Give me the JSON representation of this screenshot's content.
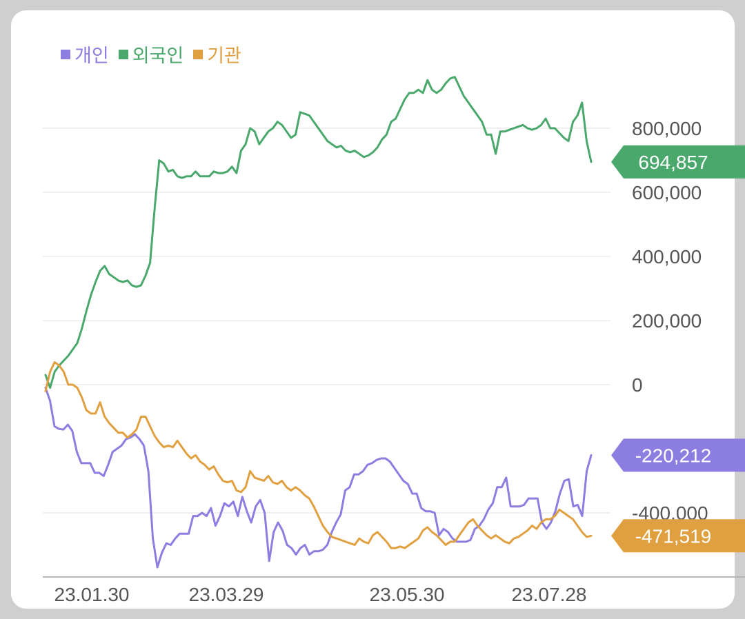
{
  "chart_data": {
    "type": "line",
    "x_ticks": [
      "23.01.30",
      "23.03.29",
      "23.05.30",
      "23.07.28"
    ],
    "y_ticks": [
      800000,
      600000,
      400000,
      200000,
      0,
      -400000
    ],
    "y_tick_labels": [
      "800,000",
      "600,000",
      "400,000",
      "200,000",
      "0",
      "-400,000"
    ],
    "ylim": [
      -600000,
      1000000
    ],
    "grid": true,
    "legend_position": "top-left",
    "series": [
      {
        "name": "개인",
        "color": "#8c7ee0",
        "last_label": "-220,212",
        "values": [
          -10000,
          -50000,
          -130000,
          -138000,
          -140000,
          -125000,
          -145000,
          -210000,
          -245000,
          -245000,
          -245000,
          -275000,
          -275000,
          -285000,
          -250000,
          -210000,
          -200000,
          -190000,
          -170000,
          -165000,
          -155000,
          -170000,
          -190000,
          -270000,
          -480000,
          -570000,
          -525000,
          -495000,
          -500000,
          -480000,
          -465000,
          -465000,
          -465000,
          -410000,
          -410000,
          -400000,
          -410000,
          -385000,
          -440000,
          -410000,
          -370000,
          -380000,
          -365000,
          -410000,
          -350000,
          -395000,
          -430000,
          -380000,
          -360000,
          -400000,
          -550000,
          -460000,
          -430000,
          -455000,
          -500000,
          -510000,
          -530000,
          -510000,
          -500000,
          -530000,
          -520000,
          -520000,
          -515000,
          -500000,
          -460000,
          -430000,
          -405000,
          -330000,
          -320000,
          -280000,
          -280000,
          -270000,
          -250000,
          -245000,
          -235000,
          -230000,
          -230000,
          -240000,
          -260000,
          -280000,
          -300000,
          -310000,
          -340000,
          -340000,
          -385000,
          -395000,
          -395000,
          -400000,
          -470000,
          -450000,
          -460000,
          -480000,
          -490000,
          -490000,
          -490000,
          -485000,
          -450000,
          -440000,
          -420000,
          -390000,
          -370000,
          -320000,
          -320000,
          -290000,
          -380000,
          -380000,
          -380000,
          -375000,
          -355000,
          -355000,
          -355000,
          -430000,
          -450000,
          -430000,
          -395000,
          -340000,
          -300000,
          -295000,
          -380000,
          -375000,
          -410000,
          -270000,
          -220212
        ]
      },
      {
        "name": "외국인",
        "color": "#4aa86c",
        "last_label": "694,857",
        "values": [
          30000,
          -10000,
          40000,
          60000,
          75000,
          90000,
          110000,
          130000,
          175000,
          230000,
          280000,
          320000,
          355000,
          370000,
          345000,
          335000,
          325000,
          320000,
          325000,
          310000,
          305000,
          310000,
          340000,
          380000,
          550000,
          700000,
          690000,
          665000,
          670000,
          650000,
          645000,
          650000,
          650000,
          665000,
          650000,
          650000,
          650000,
          665000,
          660000,
          660000,
          665000,
          680000,
          660000,
          730000,
          750000,
          800000,
          790000,
          750000,
          770000,
          790000,
          800000,
          820000,
          810000,
          790000,
          770000,
          780000,
          850000,
          845000,
          840000,
          820000,
          800000,
          780000,
          760000,
          750000,
          740000,
          745000,
          730000,
          725000,
          730000,
          720000,
          710000,
          715000,
          725000,
          740000,
          765000,
          780000,
          820000,
          830000,
          860000,
          890000,
          910000,
          910000,
          920000,
          910000,
          950000,
          920000,
          910000,
          920000,
          940000,
          955000,
          960000,
          930000,
          900000,
          880000,
          860000,
          840000,
          820000,
          780000,
          780000,
          720000,
          790000,
          790000,
          795000,
          800000,
          805000,
          810000,
          800000,
          795000,
          800000,
          810000,
          830000,
          800000,
          800000,
          785000,
          770000,
          760000,
          820000,
          840000,
          880000,
          760000,
          694857
        ]
      },
      {
        "name": "기관",
        "color": "#e0a040",
        "last_label": "-471,519",
        "values": [
          -20000,
          40000,
          70000,
          60000,
          40000,
          0,
          0,
          -10000,
          -40000,
          -80000,
          -90000,
          -90000,
          -55000,
          -100000,
          -120000,
          -135000,
          -150000,
          -150000,
          -165000,
          -155000,
          -140000,
          -100000,
          -100000,
          -130000,
          -160000,
          -180000,
          -195000,
          -190000,
          -195000,
          -175000,
          -195000,
          -215000,
          -230000,
          -220000,
          -240000,
          -250000,
          -265000,
          -255000,
          -280000,
          -300000,
          -305000,
          -300000,
          -330000,
          -335000,
          -320000,
          -270000,
          -290000,
          -295000,
          -300000,
          -285000,
          -305000,
          -310000,
          -300000,
          -320000,
          -330000,
          -320000,
          -330000,
          -345000,
          -355000,
          -380000,
          -410000,
          -440000,
          -460000,
          -475000,
          -480000,
          -485000,
          -490000,
          -495000,
          -500000,
          -480000,
          -490000,
          -495000,
          -470000,
          -460000,
          -475000,
          -490000,
          -510000,
          -510000,
          -505000,
          -510000,
          -500000,
          -490000,
          -480000,
          -455000,
          -445000,
          -460000,
          -470000,
          -485000,
          -500000,
          -490000,
          -490000,
          -470000,
          -450000,
          -430000,
          -420000,
          -440000,
          -455000,
          -470000,
          -480000,
          -470000,
          -480000,
          -490000,
          -495000,
          -480000,
          -475000,
          -465000,
          -455000,
          -440000,
          -450000,
          -430000,
          -420000,
          -420000,
          -410000,
          -390000,
          -400000,
          -410000,
          -420000,
          -440000,
          -460000,
          -475000,
          -471519
        ]
      }
    ]
  }
}
